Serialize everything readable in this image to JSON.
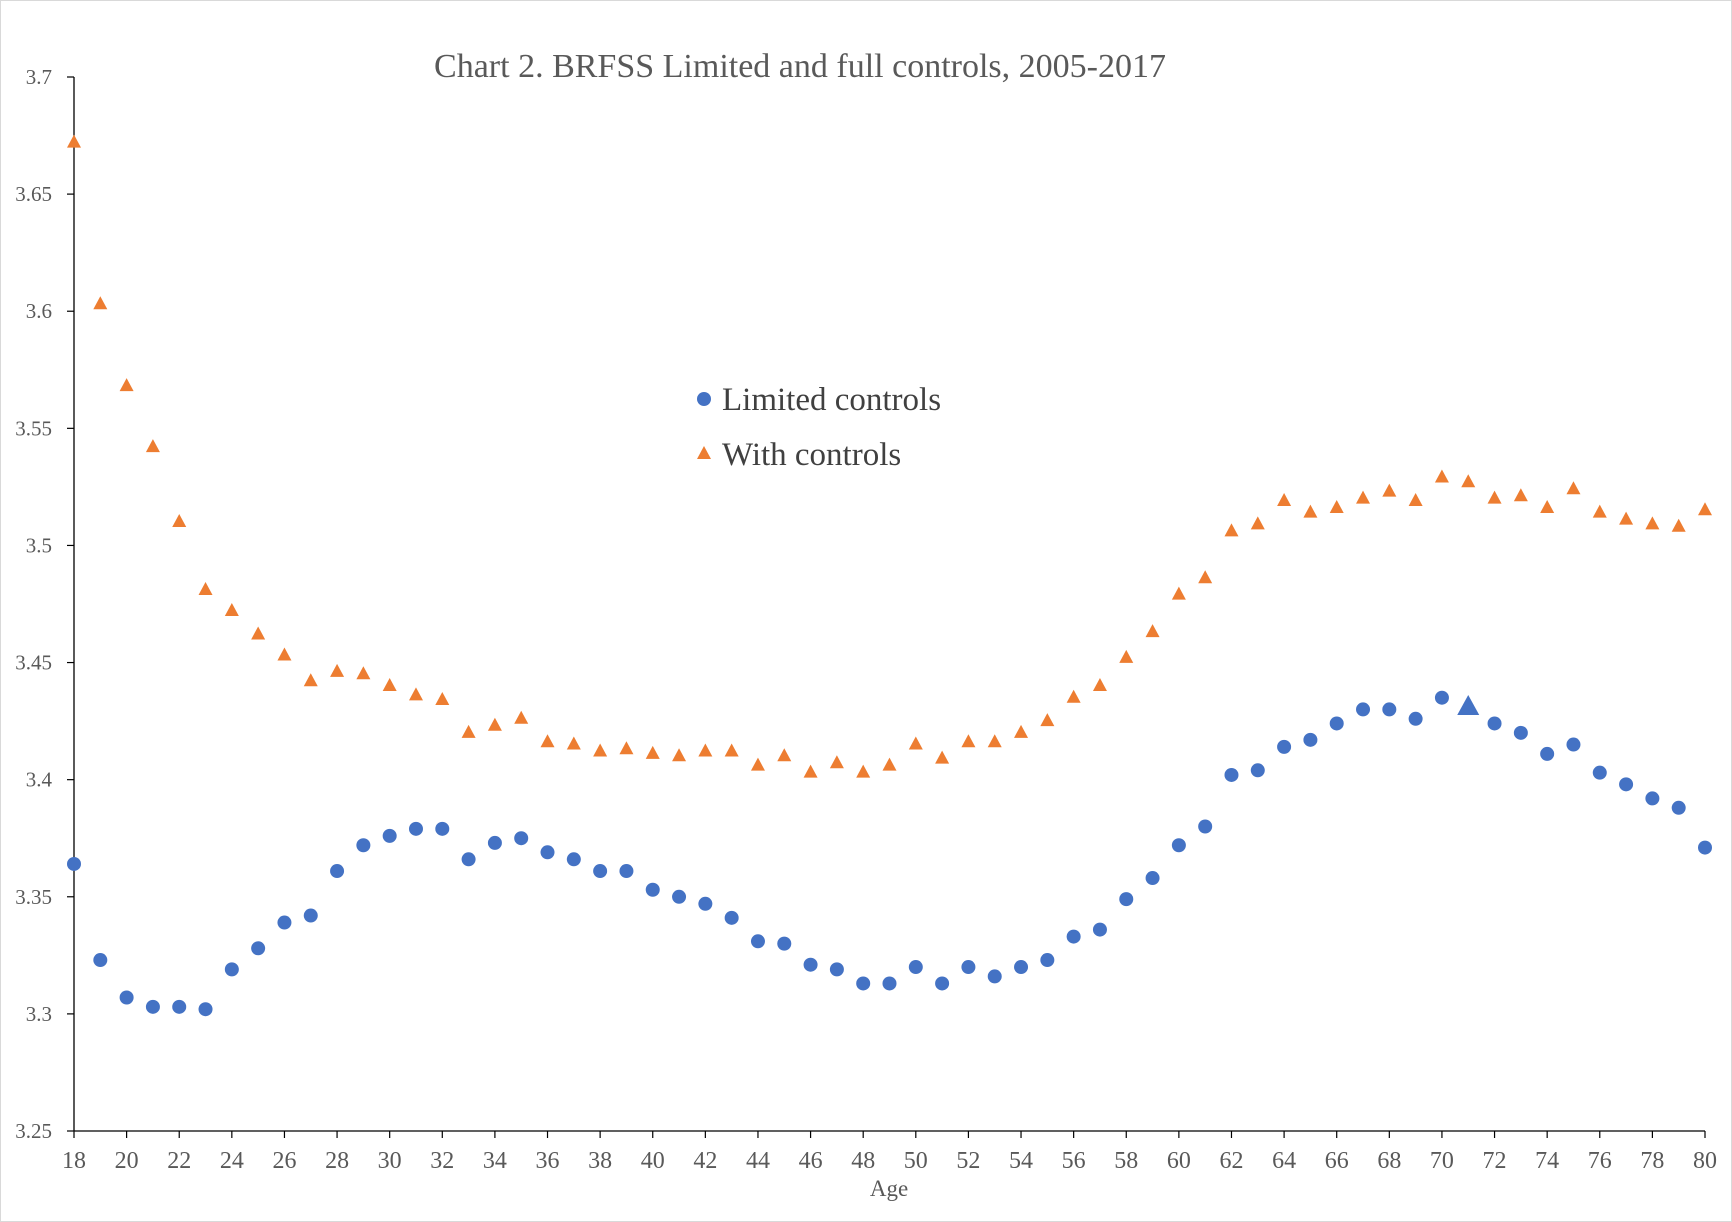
{
  "chart_data": {
    "type": "scatter",
    "title": "Chart 2. BRFSS Limited and full controls, 2005-2017",
    "xlabel": "Age",
    "ylabel": "",
    "xlim": [
      18,
      80
    ],
    "ylim": [
      3.25,
      3.7
    ],
    "x_ticks": [
      18,
      20,
      22,
      24,
      26,
      28,
      30,
      32,
      34,
      36,
      38,
      40,
      42,
      44,
      46,
      48,
      50,
      52,
      54,
      56,
      58,
      60,
      62,
      64,
      66,
      68,
      70,
      72,
      74,
      76,
      78,
      80
    ],
    "y_ticks": [
      "3.25",
      "3.3",
      "3.35",
      "3.4",
      "3.45",
      "3.5",
      "3.55",
      "3.6",
      "3.65",
      "3.7"
    ],
    "grid": false,
    "legend_position": "center",
    "x": [
      18,
      19,
      20,
      21,
      22,
      23,
      24,
      25,
      26,
      27,
      28,
      29,
      30,
      31,
      32,
      33,
      34,
      35,
      36,
      37,
      38,
      39,
      40,
      41,
      42,
      43,
      44,
      45,
      46,
      47,
      48,
      49,
      50,
      51,
      52,
      53,
      54,
      55,
      56,
      57,
      58,
      59,
      60,
      61,
      62,
      63,
      64,
      65,
      66,
      67,
      68,
      69,
      70,
      71,
      72,
      73,
      74,
      75,
      76,
      77,
      78,
      79,
      80
    ],
    "series": [
      {
        "name": "Limited controls",
        "marker": "circle",
        "color": "#4472C4",
        "values": [
          3.364,
          3.323,
          3.307,
          3.303,
          3.303,
          3.302,
          3.319,
          3.328,
          3.339,
          3.342,
          3.361,
          3.372,
          3.376,
          3.379,
          3.379,
          3.366,
          3.373,
          3.375,
          3.369,
          3.366,
          3.361,
          3.361,
          3.353,
          3.35,
          3.347,
          3.341,
          3.331,
          3.33,
          3.321,
          3.319,
          3.313,
          3.313,
          3.32,
          3.313,
          3.32,
          3.316,
          3.32,
          3.323,
          3.333,
          3.336,
          3.349,
          3.358,
          3.372,
          3.38,
          3.402,
          3.404,
          3.414,
          3.417,
          3.424,
          3.43,
          3.43,
          3.426,
          3.435,
          3.431,
          3.424,
          3.42,
          3.411,
          3.415,
          3.403,
          3.398,
          3.392,
          3.388,
          3.371
        ],
        "highlight": {
          "x": 71,
          "value": 3.431,
          "marker": "triangle"
        }
      },
      {
        "name": "With controls",
        "marker": "triangle",
        "color": "#ED7D31",
        "values": [
          3.672,
          3.603,
          3.568,
          3.542,
          3.51,
          3.481,
          3.472,
          3.462,
          3.453,
          3.442,
          3.446,
          3.445,
          3.44,
          3.436,
          3.434,
          3.42,
          3.423,
          3.426,
          3.416,
          3.415,
          3.412,
          3.413,
          3.411,
          3.41,
          3.412,
          3.412,
          3.406,
          3.41,
          3.403,
          3.407,
          3.403,
          3.406,
          3.415,
          3.409,
          3.416,
          3.416,
          3.42,
          3.425,
          3.435,
          3.44,
          3.452,
          3.463,
          3.479,
          3.486,
          3.506,
          3.509,
          3.519,
          3.514,
          3.516,
          3.52,
          3.523,
          3.519,
          3.529,
          3.527,
          3.52,
          3.521,
          3.516,
          3.524,
          3.514,
          3.511,
          3.509,
          3.508,
          3.515
        ]
      }
    ]
  },
  "colors": {
    "axis": "#000000",
    "text": "#595959",
    "limited": "#4472C4",
    "with_controls": "#ED7D31"
  }
}
